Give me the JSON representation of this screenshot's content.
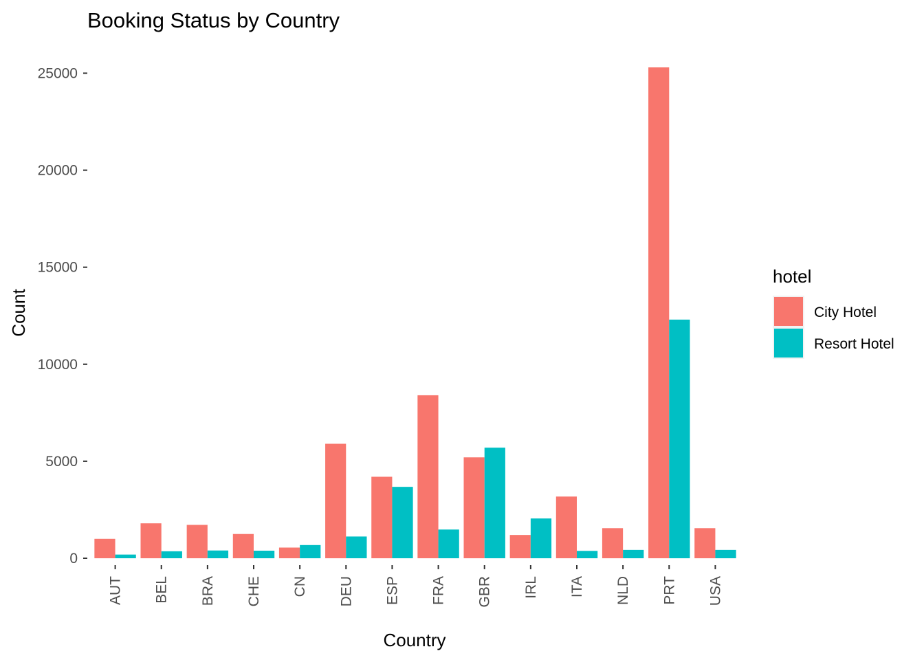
{
  "chart_data": {
    "type": "bar",
    "title": "Booking Status by Country",
    "xlabel": "Country",
    "ylabel": "Count",
    "ylim": [
      0,
      25300
    ],
    "yticks": [
      "0",
      "5000",
      "10000",
      "15000",
      "20000",
      "25000"
    ],
    "categories": [
      "AUT",
      "BEL",
      "BRA",
      "CHE",
      "CN",
      "DEU",
      "ESP",
      "FRA",
      "GBR",
      "IRL",
      "ITA",
      "NLD",
      "PRT",
      "USA"
    ],
    "series": [
      {
        "name": "City Hotel",
        "color": "#F8766D",
        "values": [
          1000,
          1800,
          1720,
          1250,
          550,
          5900,
          4200,
          8400,
          5200,
          1200,
          3180,
          1550,
          25300,
          1550
        ]
      },
      {
        "name": "Resort Hotel",
        "color": "#00BFC4",
        "values": [
          190,
          360,
          400,
          390,
          680,
          1120,
          3680,
          1480,
          5700,
          2050,
          380,
          430,
          12300,
          430
        ]
      }
    ],
    "legend": {
      "title": "hotel",
      "position": "right"
    },
    "grid": false
  }
}
